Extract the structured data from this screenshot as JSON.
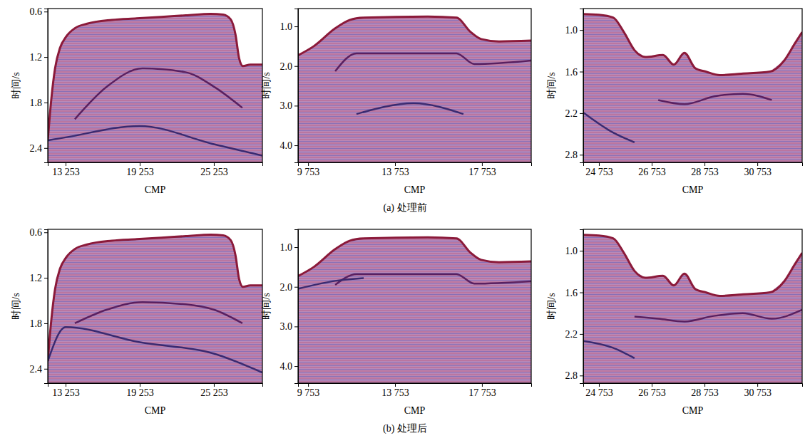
{
  "captions": [
    "(a) 处理前",
    "(b) 处理后"
  ],
  "chart_data": [
    {
      "type": "seismic",
      "xlabel": "CMP",
      "ylabel": "时间/s",
      "color": "#b98ab9",
      "xlim": [
        11810,
        29180
      ],
      "ylim": [
        0.56,
        2.59
      ],
      "xticks": [
        {
          "value": 13253,
          "label": "13 253"
        },
        {
          "value": 19253,
          "label": "19 253"
        },
        {
          "value": 25253,
          "label": "25 253"
        }
      ],
      "yticks": [
        0.6,
        1.2,
        1.8,
        2.4
      ],
      "series": [
        {
          "color": "#8b1a3a",
          "x": [
            11810,
            12100,
            12400,
            12800,
            13300,
            14000,
            15000,
            17000,
            19000,
            21000,
            23000,
            25000,
            26000,
            26600,
            27000,
            27300,
            27600,
            28200,
            29180
          ],
          "values": [
            2.3,
            1.75,
            1.35,
            1.08,
            0.93,
            0.82,
            0.76,
            0.71,
            0.69,
            0.67,
            0.65,
            0.63,
            0.64,
            0.7,
            0.9,
            1.22,
            1.32,
            1.3,
            1.3
          ]
        },
        {
          "color": "#5a2060",
          "x": [
            14000,
            16600,
            19480,
            22950,
            25250,
            27560
          ],
          "values": [
            2.02,
            1.59,
            1.35,
            1.4,
            1.59,
            1.87
          ]
        },
        {
          "color": "#3a2a70",
          "x": [
            11810,
            13253,
            19253,
            25253,
            29180
          ],
          "values": [
            2.3,
            2.26,
            2.11,
            2.35,
            2.5
          ]
        }
      ]
    },
    {
      "type": "seismic",
      "xlabel": "CMP",
      "ylabel": "时间/s",
      "color": "#b98ab9",
      "xlim": [
        9290,
        20020
      ],
      "ylim": [
        0.55,
        4.43
      ],
      "xticks": [
        {
          "value": 9753,
          "label": "9 753"
        },
        {
          "value": 13753,
          "label": "13 753"
        },
        {
          "value": 17753,
          "label": "17 753"
        }
      ],
      "yticks": [
        {
          "value": 1,
          "label": "1.0"
        },
        {
          "value": 2,
          "label": "2.0"
        },
        {
          "value": 3,
          "label": "3.0"
        },
        {
          "value": 4,
          "label": "4.0"
        }
      ],
      "series": [
        {
          "color": "#8b1a3a",
          "x": [
            9290,
            10015,
            11000,
            11660,
            12310,
            15260,
            16580,
            17230,
            17720,
            18540,
            20020
          ],
          "values": [
            1.73,
            1.5,
            1.05,
            0.84,
            0.78,
            0.75,
            0.78,
            1.14,
            1.32,
            1.38,
            1.36
          ]
        },
        {
          "color": "#5a2060",
          "x": [
            11000,
            11980,
            16580,
            17400,
            20020
          ],
          "values": [
            2.13,
            1.68,
            1.68,
            1.95,
            1.86
          ]
        },
        {
          "color": "#3a2a70",
          "x": [
            11980,
            14610,
            16900
          ],
          "values": [
            3.21,
            2.94,
            3.21
          ]
        }
      ]
    },
    {
      "type": "seismic",
      "xlabel": "CMP",
      "ylabel": "时间/s",
      "color": "#b98ab9",
      "xlim": [
        24160,
        32450
      ],
      "ylim": [
        0.69,
        2.91
      ],
      "xticks": [
        {
          "value": 24753,
          "label": "24 753"
        },
        {
          "value": 26753,
          "label": "26 753"
        },
        {
          "value": 28753,
          "label": "28 753"
        },
        {
          "value": 30753,
          "label": "30 753"
        }
      ],
      "yticks": [
        {
          "value": 1,
          "label": "1.0"
        },
        1.6,
        2.2,
        2.8
      ],
      "series": [
        {
          "color": "#8b1a3a",
          "x": [
            24160,
            24753,
            25290,
            25700,
            26100,
            26510,
            27180,
            27590,
            27990,
            28400,
            28800,
            29340,
            30150,
            31230,
            31770,
            32180,
            32450
          ],
          "values": [
            0.77,
            0.78,
            0.82,
            1.03,
            1.29,
            1.39,
            1.36,
            1.5,
            1.33,
            1.55,
            1.6,
            1.65,
            1.63,
            1.6,
            1.44,
            1.19,
            1.03
          ]
        },
        {
          "color": "#5a2060",
          "x": [
            27000,
            28000,
            29100,
            30200,
            31300
          ],
          "values": [
            2.01,
            2.07,
            1.96,
            1.92,
            2.01
          ]
        },
        {
          "color": "#3a2a70",
          "x": [
            24160,
            25290,
            26100
          ],
          "values": [
            2.19,
            2.48,
            2.62
          ]
        }
      ]
    },
    {
      "type": "seismic",
      "xlabel": "CMP",
      "ylabel": "时间/s",
      "color": "#b98ab9",
      "xlim": [
        11810,
        29180
      ],
      "ylim": [
        0.56,
        2.59
      ],
      "xticks": [
        {
          "value": 13253,
          "label": "13 253"
        },
        {
          "value": 19253,
          "label": "19 253"
        },
        {
          "value": 25253,
          "label": "25 253"
        }
      ],
      "yticks": [
        0.6,
        1.2,
        1.8,
        2.4
      ],
      "series": [
        {
          "color": "#8b1a3a",
          "x": [
            11810,
            12100,
            12400,
            12800,
            13300,
            14000,
            15000,
            17000,
            19000,
            21000,
            23000,
            25000,
            26000,
            26600,
            27000,
            27300,
            27600,
            28200,
            29180
          ],
          "values": [
            2.3,
            1.75,
            1.35,
            1.08,
            0.93,
            0.82,
            0.76,
            0.71,
            0.69,
            0.67,
            0.65,
            0.63,
            0.64,
            0.7,
            0.9,
            1.22,
            1.32,
            1.3,
            1.3
          ]
        },
        {
          "color": "#5a2060",
          "x": [
            14000,
            16600,
            19480,
            22950,
            25250,
            27560
          ],
          "values": [
            1.8,
            1.62,
            1.52,
            1.55,
            1.62,
            1.8
          ]
        },
        {
          "color": "#3a2a70",
          "x": [
            11810,
            13253,
            19253,
            25253,
            29180
          ],
          "values": [
            2.3,
            1.85,
            2.05,
            2.2,
            2.45
          ]
        }
      ]
    },
    {
      "type": "seismic",
      "xlabel": "CMP",
      "ylabel": "时间/s",
      "color": "#b98ab9",
      "xlim": [
        9290,
        20020
      ],
      "ylim": [
        0.55,
        4.43
      ],
      "xticks": [
        {
          "value": 9753,
          "label": "9 753"
        },
        {
          "value": 13753,
          "label": "13 753"
        },
        {
          "value": 17753,
          "label": "17 753"
        }
      ],
      "yticks": [
        {
          "value": 1,
          "label": "1.0"
        },
        {
          "value": 2,
          "label": "2.0"
        },
        {
          "value": 3,
          "label": "3.0"
        },
        {
          "value": 4,
          "label": "4.0"
        }
      ],
      "series": [
        {
          "color": "#8b1a3a",
          "x": [
            9290,
            10015,
            11000,
            11660,
            12310,
            15260,
            16580,
            17230,
            17720,
            18540,
            20020
          ],
          "values": [
            1.73,
            1.5,
            1.05,
            0.84,
            0.78,
            0.75,
            0.78,
            1.14,
            1.32,
            1.38,
            1.36
          ]
        },
        {
          "color": "#5a2060",
          "x": [
            11000,
            11980,
            16580,
            17400,
            20020
          ],
          "values": [
            1.95,
            1.68,
            1.68,
            1.92,
            1.86
          ]
        },
        {
          "color": "#3a2a70",
          "x": [
            9290,
            11000,
            12310
          ],
          "values": [
            2.05,
            1.85,
            1.78
          ]
        }
      ]
    },
    {
      "type": "seismic",
      "xlabel": "CMP",
      "ylabel": "时间/s",
      "color": "#b98ab9",
      "xlim": [
        24160,
        32450
      ],
      "ylim": [
        0.69,
        2.91
      ],
      "xticks": [
        {
          "value": 24753,
          "label": "24 753"
        },
        {
          "value": 26753,
          "label": "26 753"
        },
        {
          "value": 28753,
          "label": "28 753"
        },
        {
          "value": 30753,
          "label": "30 753"
        }
      ],
      "yticks": [
        {
          "value": 1,
          "label": "1.0"
        },
        1.6,
        2.2,
        2.8
      ],
      "series": [
        {
          "color": "#8b1a3a",
          "x": [
            24160,
            24753,
            25290,
            25700,
            26100,
            26510,
            27180,
            27590,
            27990,
            28400,
            28800,
            29340,
            30150,
            31230,
            31770,
            32180,
            32450
          ],
          "values": [
            0.77,
            0.78,
            0.82,
            1.03,
            1.29,
            1.39,
            1.36,
            1.5,
            1.33,
            1.55,
            1.6,
            1.65,
            1.63,
            1.6,
            1.44,
            1.19,
            1.03
          ]
        },
        {
          "color": "#5a2060",
          "x": [
            26100,
            27000,
            28000,
            29100,
            30200,
            31300,
            32450
          ],
          "values": [
            1.95,
            1.98,
            2.02,
            1.94,
            1.9,
            1.98,
            1.85
          ]
        },
        {
          "color": "#3a2a70",
          "x": [
            24160,
            25290,
            26100
          ],
          "values": [
            2.3,
            2.4,
            2.55
          ]
        }
      ]
    }
  ]
}
